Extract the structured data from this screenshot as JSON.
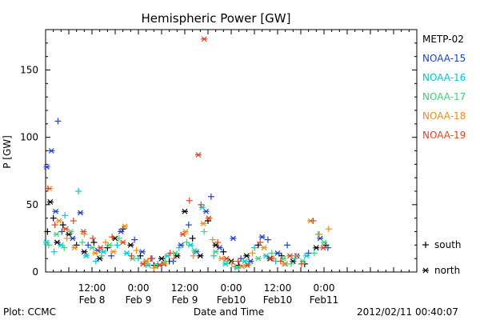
{
  "footer": {
    "plot_credit": "Plot: CCMC",
    "timestamp": "2012/02/11 00:40:07"
  },
  "chart_data": {
    "type": "scatter",
    "title": "Hemispheric Power [GW]",
    "xlabel": "Date and Time",
    "ylabel": "P [GW]",
    "ylim": [
      0,
      180
    ],
    "xlim_hours_from_feb7_00": [
      0,
      96
    ],
    "y_ticks": [
      0,
      50,
      100,
      150
    ],
    "x_ticks": [
      {
        "t": 12,
        "line1": "12:00",
        "line2": "Feb 8"
      },
      {
        "t": 24,
        "line1": "0:00",
        "line2": "Feb 9"
      },
      {
        "t": 36,
        "line1": "12:00",
        "line2": "Feb 9"
      },
      {
        "t": 48,
        "line1": "0:00",
        "line2": "Feb10"
      },
      {
        "t": 60,
        "line1": "12:00",
        "line2": "Feb10"
      },
      {
        "t": 72,
        "line1": "0:00",
        "line2": "Feb11"
      }
    ],
    "grid": false,
    "legend_position": "right",
    "marker_legend": [
      {
        "marker": "+",
        "label": "south"
      },
      {
        "marker": "*",
        "label": "north"
      }
    ],
    "series": [
      {
        "name": "METP-02",
        "color": "#000000",
        "points": [
          {
            "t": 0.5,
            "v": 30,
            "m": "+"
          },
          {
            "t": 1.2,
            "v": 52,
            "m": "*"
          },
          {
            "t": 2,
            "v": 40,
            "m": "+"
          },
          {
            "t": 3,
            "v": 22,
            "m": "*"
          },
          {
            "t": 4.5,
            "v": 35,
            "m": "+"
          },
          {
            "t": 6,
            "v": 28,
            "m": "*"
          },
          {
            "t": 8,
            "v": 20,
            "m": "+"
          },
          {
            "t": 10,
            "v": 15,
            "m": "*"
          },
          {
            "t": 12.5,
            "v": 22,
            "m": "+"
          },
          {
            "t": 14,
            "v": 10,
            "m": "*"
          },
          {
            "t": 16,
            "v": 18,
            "m": "+"
          },
          {
            "t": 18,
            "v": 25,
            "m": "*"
          },
          {
            "t": 20,
            "v": 32,
            "m": "+"
          },
          {
            "t": 22,
            "v": 20,
            "m": "*"
          },
          {
            "t": 24.5,
            "v": 12,
            "m": "+"
          },
          {
            "t": 26,
            "v": 8,
            "m": "*"
          },
          {
            "t": 28,
            "v": 5,
            "m": "+"
          },
          {
            "t": 30,
            "v": 10,
            "m": "*"
          },
          {
            "t": 32,
            "v": 8,
            "m": "+"
          },
          {
            "t": 34,
            "v": 12,
            "m": "*"
          },
          {
            "t": 36,
            "v": 45,
            "m": "*"
          },
          {
            "t": 38,
            "v": 25,
            "m": "+"
          },
          {
            "t": 40,
            "v": 12,
            "m": "*"
          },
          {
            "t": 42,
            "v": 38,
            "m": "+"
          },
          {
            "t": 44,
            "v": 20,
            "m": "*"
          },
          {
            "t": 46,
            "v": 15,
            "m": "+"
          },
          {
            "t": 48,
            "v": 8,
            "m": "*"
          },
          {
            "t": 50,
            "v": 5,
            "m": "+"
          },
          {
            "t": 52,
            "v": 12,
            "m": "*"
          },
          {
            "t": 55,
            "v": 20,
            "m": "+"
          },
          {
            "t": 58,
            "v": 10,
            "m": "*"
          },
          {
            "t": 61,
            "v": 12,
            "m": "+"
          },
          {
            "t": 64,
            "v": 8,
            "m": "*"
          },
          {
            "t": 67,
            "v": 6,
            "m": "+"
          },
          {
            "t": 70,
            "v": 18,
            "m": "*"
          },
          {
            "t": 72.5,
            "v": 20,
            "m": "+"
          }
        ]
      },
      {
        "name": "NOAA-15",
        "color": "#1f3fcf",
        "points": [
          {
            "t": 0.3,
            "v": 78,
            "m": "*"
          },
          {
            "t": 1.5,
            "v": 90,
            "m": "*"
          },
          {
            "t": 3.2,
            "v": 112,
            "m": "+"
          },
          {
            "t": 2.6,
            "v": 45,
            "m": "*"
          },
          {
            "t": 4.2,
            "v": 30,
            "m": "+"
          },
          {
            "t": 7,
            "v": 25,
            "m": "*"
          },
          {
            "t": 9,
            "v": 44,
            "m": "*"
          },
          {
            "t": 11,
            "v": 20,
            "m": "+"
          },
          {
            "t": 13.5,
            "v": 16,
            "m": "*"
          },
          {
            "t": 17,
            "v": 12,
            "m": "+"
          },
          {
            "t": 19.5,
            "v": 30,
            "m": "*"
          },
          {
            "t": 23,
            "v": 24,
            "m": "+"
          },
          {
            "t": 25,
            "v": 15,
            "m": "*"
          },
          {
            "t": 27.5,
            "v": 10,
            "m": "+"
          },
          {
            "t": 30.5,
            "v": 6,
            "m": "*"
          },
          {
            "t": 33,
            "v": 8,
            "m": "+"
          },
          {
            "t": 35,
            "v": 20,
            "m": "*"
          },
          {
            "t": 37,
            "v": 35,
            "m": "+"
          },
          {
            "t": 39,
            "v": 15,
            "m": "*"
          },
          {
            "t": 41.5,
            "v": 45,
            "m": "*"
          },
          {
            "t": 42.8,
            "v": 56,
            "m": "+"
          },
          {
            "t": 45,
            "v": 18,
            "m": "*"
          },
          {
            "t": 48.5,
            "v": 25,
            "m": "*"
          },
          {
            "t": 50.5,
            "v": 10,
            "m": "+"
          },
          {
            "t": 53,
            "v": 8,
            "m": "*"
          },
          {
            "t": 56,
            "v": 26,
            "m": "*"
          },
          {
            "t": 57.5,
            "v": 24,
            "m": "+"
          },
          {
            "t": 60,
            "v": 14,
            "m": "*"
          },
          {
            "t": 62.5,
            "v": 20,
            "m": "+"
          },
          {
            "t": 65,
            "v": 12,
            "m": "*"
          },
          {
            "t": 68,
            "v": 14,
            "m": "+"
          },
          {
            "t": 71,
            "v": 25,
            "m": "*"
          },
          {
            "t": 73,
            "v": 18,
            "m": "+"
          }
        ]
      },
      {
        "name": "NOAA-16",
        "color": "#00c8d7",
        "points": [
          {
            "t": 0.2,
            "v": 22,
            "m": "*"
          },
          {
            "t": 2.2,
            "v": 15,
            "m": "+"
          },
          {
            "t": 4,
            "v": 20,
            "m": "*"
          },
          {
            "t": 5,
            "v": 42,
            "m": "+"
          },
          {
            "t": 8.5,
            "v": 60,
            "m": "+"
          },
          {
            "t": 10.5,
            "v": 12,
            "m": "*"
          },
          {
            "t": 13,
            "v": 8,
            "m": "+"
          },
          {
            "t": 15,
            "v": 15,
            "m": "*"
          },
          {
            "t": 18.5,
            "v": 20,
            "m": "+"
          },
          {
            "t": 21,
            "v": 14,
            "m": "*"
          },
          {
            "t": 24,
            "v": 10,
            "m": "+"
          },
          {
            "t": 26.5,
            "v": 5,
            "m": "*"
          },
          {
            "t": 29,
            "v": 6,
            "m": "+"
          },
          {
            "t": 31.5,
            "v": 12,
            "m": "*"
          },
          {
            "t": 34.5,
            "v": 18,
            "m": "+"
          },
          {
            "t": 37.5,
            "v": 20,
            "m": "*"
          },
          {
            "t": 40.5,
            "v": 48,
            "m": "*"
          },
          {
            "t": 43.5,
            "v": 12,
            "m": "+"
          },
          {
            "t": 46.5,
            "v": 6,
            "m": "*"
          },
          {
            "t": 49,
            "v": 4,
            "m": "+"
          },
          {
            "t": 51.5,
            "v": 8,
            "m": "*"
          },
          {
            "t": 54,
            "v": 18,
            "m": "+"
          },
          {
            "t": 57,
            "v": 12,
            "m": "*"
          },
          {
            "t": 59.5,
            "v": 8,
            "m": "+"
          },
          {
            "t": 62,
            "v": 6,
            "m": "*"
          },
          {
            "t": 64.5,
            "v": 10,
            "m": "+"
          },
          {
            "t": 67.5,
            "v": 12,
            "m": "*"
          },
          {
            "t": 70.5,
            "v": 28,
            "m": "+"
          }
        ]
      },
      {
        "name": "NOAA-17",
        "color": "#3fd07a",
        "points": [
          {
            "t": 0.8,
            "v": 20,
            "m": "+"
          },
          {
            "t": 2.8,
            "v": 28,
            "m": "*"
          },
          {
            "t": 4.8,
            "v": 18,
            "m": "+"
          },
          {
            "t": 6.5,
            "v": 30,
            "m": "*"
          },
          {
            "t": 9.5,
            "v": 22,
            "m": "+"
          },
          {
            "t": 12,
            "v": 18,
            "m": "*"
          },
          {
            "t": 14.5,
            "v": 12,
            "m": "+"
          },
          {
            "t": 16.5,
            "v": 20,
            "m": "*"
          },
          {
            "t": 19,
            "v": 25,
            "m": "+"
          },
          {
            "t": 22.5,
            "v": 10,
            "m": "*"
          },
          {
            "t": 25.5,
            "v": 6,
            "m": "+"
          },
          {
            "t": 28.5,
            "v": 4,
            "m": "*"
          },
          {
            "t": 31,
            "v": 8,
            "m": "+"
          },
          {
            "t": 33.5,
            "v": 14,
            "m": "*"
          },
          {
            "t": 36.5,
            "v": 22,
            "m": "+"
          },
          {
            "t": 38.5,
            "v": 16,
            "m": "*"
          },
          {
            "t": 41,
            "v": 30,
            "m": "+"
          },
          {
            "t": 44,
            "v": 15,
            "m": "*"
          },
          {
            "t": 47,
            "v": 8,
            "m": "+"
          },
          {
            "t": 49.5,
            "v": 3,
            "m": "*"
          },
          {
            "t": 52.5,
            "v": 6,
            "m": "+"
          },
          {
            "t": 55,
            "v": 10,
            "m": "*"
          },
          {
            "t": 58.5,
            "v": 14,
            "m": "+"
          },
          {
            "t": 61.5,
            "v": 10,
            "m": "*"
          },
          {
            "t": 63.5,
            "v": 6,
            "m": "+"
          },
          {
            "t": 66.5,
            "v": 8,
            "m": "*"
          },
          {
            "t": 69.5,
            "v": 14,
            "m": "+"
          },
          {
            "t": 72,
            "v": 22,
            "m": "*"
          }
        ]
      },
      {
        "name": "NOAA-18",
        "color": "#f08c18",
        "points": [
          {
            "t": 1,
            "v": 62,
            "m": "*"
          },
          {
            "t": 3.5,
            "v": 38,
            "m": "*"
          },
          {
            "t": 5.5,
            "v": 25,
            "m": "+"
          },
          {
            "t": 7.5,
            "v": 18,
            "m": "*"
          },
          {
            "t": 10,
            "v": 28,
            "m": "+"
          },
          {
            "t": 12.8,
            "v": 14,
            "m": "*"
          },
          {
            "t": 15.5,
            "v": 22,
            "m": "+"
          },
          {
            "t": 17.5,
            "v": 15,
            "m": "*"
          },
          {
            "t": 20.5,
            "v": 34,
            "m": "*"
          },
          {
            "t": 23.5,
            "v": 16,
            "m": "+"
          },
          {
            "t": 26,
            "v": 8,
            "m": "*"
          },
          {
            "t": 28,
            "v": 3,
            "m": "+"
          },
          {
            "t": 30.8,
            "v": 6,
            "m": "*"
          },
          {
            "t": 33.2,
            "v": 10,
            "m": "+"
          },
          {
            "t": 36.2,
            "v": 30,
            "m": "*"
          },
          {
            "t": 38.2,
            "v": 12,
            "m": "+"
          },
          {
            "t": 40.8,
            "v": 36,
            "m": "*"
          },
          {
            "t": 43.2,
            "v": 24,
            "m": "+"
          },
          {
            "t": 45.5,
            "v": 10,
            "m": "*"
          },
          {
            "t": 48.2,
            "v": 6,
            "m": "+"
          },
          {
            "t": 50.8,
            "v": 4,
            "m": "*"
          },
          {
            "t": 53.5,
            "v": 14,
            "m": "+"
          },
          {
            "t": 56.5,
            "v": 18,
            "m": "*"
          },
          {
            "t": 59,
            "v": 10,
            "m": "+"
          },
          {
            "t": 61.8,
            "v": 6,
            "m": "*"
          },
          {
            "t": 64.8,
            "v": 12,
            "m": "+"
          },
          {
            "t": 68.5,
            "v": 38,
            "m": "*"
          },
          {
            "t": 70.8,
            "v": 28,
            "m": "+"
          },
          {
            "t": 73.2,
            "v": 32,
            "m": "+"
          }
        ]
      },
      {
        "name": "NOAA-19",
        "color": "#e0441c",
        "points": [
          {
            "t": 0.6,
            "v": 62,
            "m": "+"
          },
          {
            "t": 2.4,
            "v": 35,
            "m": "+"
          },
          {
            "t": 5.2,
            "v": 32,
            "m": "*"
          },
          {
            "t": 7.2,
            "v": 38,
            "m": "+"
          },
          {
            "t": 9.8,
            "v": 30,
            "m": "*"
          },
          {
            "t": 12.2,
            "v": 25,
            "m": "+"
          },
          {
            "t": 14.2,
            "v": 18,
            "m": "*"
          },
          {
            "t": 17.2,
            "v": 26,
            "m": "+"
          },
          {
            "t": 20,
            "v": 22,
            "m": "*"
          },
          {
            "t": 22.2,
            "v": 12,
            "m": "+"
          },
          {
            "t": 25.2,
            "v": 6,
            "m": "*"
          },
          {
            "t": 27.2,
            "v": 10,
            "m": "+"
          },
          {
            "t": 29.5,
            "v": 5,
            "m": "*"
          },
          {
            "t": 32.2,
            "v": 14,
            "m": "+"
          },
          {
            "t": 35.5,
            "v": 28,
            "m": "*"
          },
          {
            "t": 37.2,
            "v": 53,
            "m": "+"
          },
          {
            "t": 39.5,
            "v": 87,
            "m": "*"
          },
          {
            "t": 40.2,
            "v": 50,
            "m": "+"
          },
          {
            "t": 41,
            "v": 173,
            "m": "*"
          },
          {
            "t": 42.2,
            "v": 40,
            "m": "*"
          },
          {
            "t": 44.5,
            "v": 22,
            "m": "+"
          },
          {
            "t": 46.8,
            "v": 10,
            "m": "*"
          },
          {
            "t": 49.8,
            "v": 8,
            "m": "+"
          },
          {
            "t": 52.2,
            "v": 5,
            "m": "*"
          },
          {
            "t": 55.5,
            "v": 22,
            "m": "+"
          },
          {
            "t": 58.2,
            "v": 10,
            "m": "*"
          },
          {
            "t": 60.8,
            "v": 8,
            "m": "+"
          },
          {
            "t": 63.2,
            "v": 12,
            "m": "*"
          },
          {
            "t": 66.2,
            "v": 6,
            "m": "+"
          },
          {
            "t": 69.2,
            "v": 38,
            "m": "+"
          },
          {
            "t": 71.8,
            "v": 18,
            "m": "*"
          }
        ]
      }
    ]
  }
}
